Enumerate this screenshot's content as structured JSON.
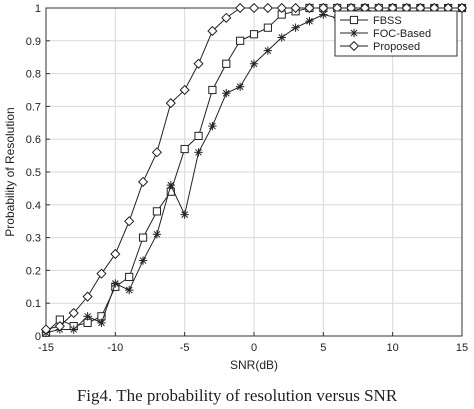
{
  "chart_data": {
    "type": "line",
    "xlabel": "SNR(dB)",
    "ylabel": "Probability of Resolution",
    "xlim": [
      -15,
      15
    ],
    "ylim": [
      0,
      1
    ],
    "xticks": [
      -15,
      -10,
      -5,
      0,
      5,
      10,
      15
    ],
    "yticks": [
      0,
      0.1,
      0.2,
      0.3,
      0.4,
      0.5,
      0.6,
      0.7,
      0.8,
      0.9,
      1
    ],
    "grid": true,
    "legend_position": "top-right",
    "x": [
      -15,
      -14,
      -13,
      -12,
      -11,
      -10,
      -9,
      -8,
      -7,
      -6,
      -5,
      -4,
      -3,
      -2,
      -1,
      0,
      1,
      2,
      3,
      4,
      5,
      6,
      7,
      8,
      9,
      10,
      11,
      12,
      13,
      14,
      15
    ],
    "series": [
      {
        "name": "FBSS",
        "marker": "square",
        "values": [
          0.01,
          0.05,
          0.03,
          0.04,
          0.06,
          0.15,
          0.18,
          0.3,
          0.38,
          0.44,
          0.57,
          0.61,
          0.75,
          0.83,
          0.9,
          0.92,
          0.94,
          0.98,
          0.99,
          1.0,
          1.0,
          1.0,
          1.0,
          1.0,
          1.0,
          1.0,
          1.0,
          1.0,
          1.0,
          1.0,
          1.0
        ]
      },
      {
        "name": "FOC-Based",
        "marker": "asterisk",
        "values": [
          0.01,
          0.02,
          0.02,
          0.06,
          0.04,
          0.16,
          0.14,
          0.23,
          0.31,
          0.46,
          0.37,
          0.56,
          0.64,
          0.74,
          0.76,
          0.83,
          0.87,
          0.91,
          0.94,
          0.96,
          0.98,
          0.97,
          0.99,
          1.0,
          0.98,
          1.0,
          1.0,
          1.0,
          1.0,
          1.0,
          1.0
        ]
      },
      {
        "name": "Proposed",
        "marker": "diamond",
        "values": [
          0.02,
          0.03,
          0.07,
          0.12,
          0.19,
          0.25,
          0.35,
          0.47,
          0.56,
          0.71,
          0.75,
          0.83,
          0.93,
          0.97,
          1.0,
          1.0,
          1.0,
          1.0,
          1.0,
          1.0,
          1.0,
          1.0,
          1.0,
          1.0,
          1.0,
          1.0,
          1.0,
          1.0,
          1.0,
          1.0,
          1.0
        ]
      }
    ]
  },
  "caption": "Fig4. The probability of resolution versus SNR",
  "colors": {
    "line": "#222222",
    "grid": "#d9d9d9",
    "axis": "#333333"
  }
}
